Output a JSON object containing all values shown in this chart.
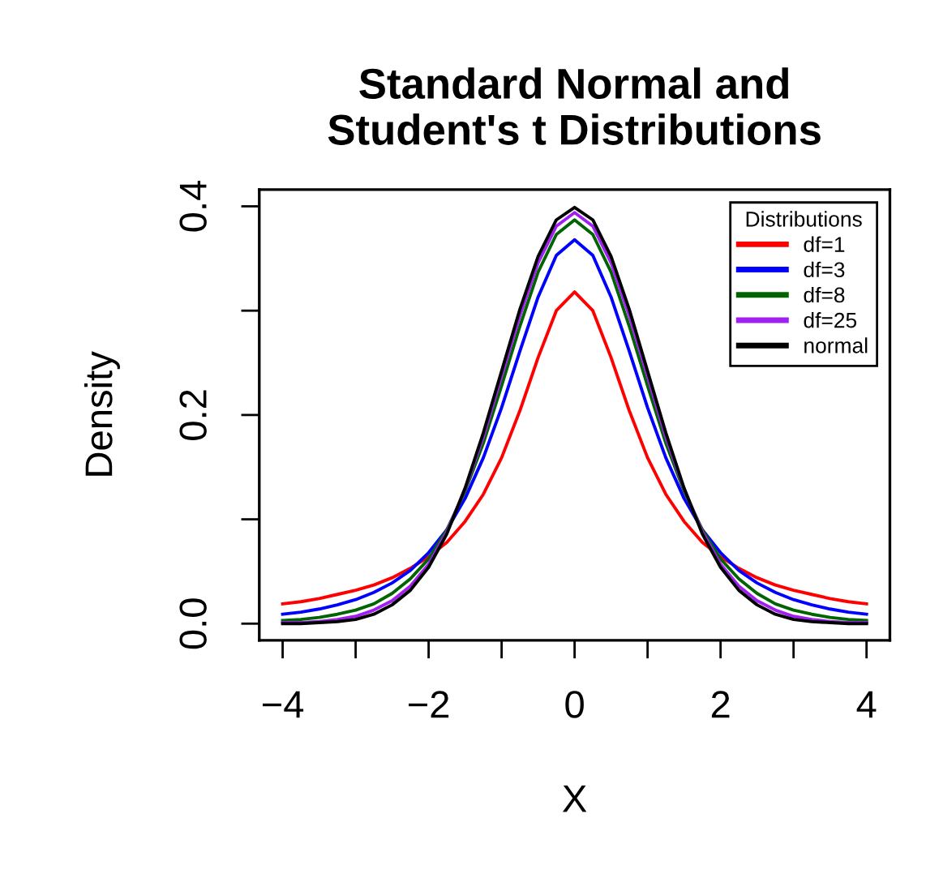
{
  "chart_data": {
    "type": "line",
    "title": "Standard Normal and\nStudent's t Distributions",
    "xlabel": "X",
    "ylabel": "Density",
    "x": [
      -4,
      -3.75,
      -3.5,
      -3.25,
      -3,
      -2.75,
      -2.5,
      -2.25,
      -2,
      -1.75,
      -1.5,
      -1.25,
      -1,
      -0.75,
      -0.5,
      -0.25,
      0,
      0.25,
      0.5,
      0.75,
      1,
      1.25,
      1.5,
      1.75,
      2,
      2.25,
      2.5,
      2.75,
      3,
      3.25,
      3.5,
      3.75,
      4
    ],
    "series": [
      {
        "name": "df=1",
        "color": "#ff0000",
        "values": [
          0.019,
          0.021,
          0.024,
          0.028,
          0.032,
          0.037,
          0.044,
          0.053,
          0.064,
          0.078,
          0.098,
          0.124,
          0.159,
          0.204,
          0.255,
          0.3,
          0.318,
          0.3,
          0.255,
          0.204,
          0.159,
          0.124,
          0.098,
          0.078,
          0.064,
          0.053,
          0.044,
          0.037,
          0.032,
          0.028,
          0.024,
          0.021,
          0.019
        ]
      },
      {
        "name": "df=3",
        "color": "#0000ff",
        "values": [
          0.009,
          0.011,
          0.014,
          0.018,
          0.023,
          0.03,
          0.039,
          0.051,
          0.068,
          0.09,
          0.12,
          0.159,
          0.207,
          0.261,
          0.313,
          0.353,
          0.368,
          0.353,
          0.313,
          0.261,
          0.207,
          0.159,
          0.12,
          0.09,
          0.068,
          0.051,
          0.039,
          0.03,
          0.023,
          0.018,
          0.014,
          0.011,
          0.009
        ]
      },
      {
        "name": "df=8",
        "color": "#006400",
        "values": [
          0.003,
          0.004,
          0.006,
          0.009,
          0.013,
          0.019,
          0.029,
          0.043,
          0.062,
          0.09,
          0.127,
          0.173,
          0.228,
          0.285,
          0.337,
          0.373,
          0.387,
          0.373,
          0.337,
          0.285,
          0.228,
          0.173,
          0.127,
          0.09,
          0.062,
          0.043,
          0.029,
          0.019,
          0.013,
          0.009,
          0.006,
          0.004,
          0.003
        ]
      },
      {
        "name": "df=25",
        "color": "#a020f0",
        "values": [
          0.001,
          0.001,
          0.002,
          0.004,
          0.007,
          0.013,
          0.022,
          0.036,
          0.057,
          0.088,
          0.129,
          0.179,
          0.237,
          0.295,
          0.346,
          0.381,
          0.394,
          0.381,
          0.346,
          0.295,
          0.237,
          0.179,
          0.129,
          0.088,
          0.057,
          0.036,
          0.022,
          0.013,
          0.007,
          0.004,
          0.002,
          0.001,
          0.001
        ]
      },
      {
        "name": "normal",
        "color": "#000000",
        "values": [
          0.0,
          0.0,
          0.001,
          0.002,
          0.004,
          0.009,
          0.018,
          0.032,
          0.054,
          0.086,
          0.13,
          0.183,
          0.242,
          0.301,
          0.352,
          0.387,
          0.399,
          0.387,
          0.352,
          0.301,
          0.242,
          0.183,
          0.13,
          0.086,
          0.054,
          0.032,
          0.018,
          0.009,
          0.004,
          0.002,
          0.001,
          0.0,
          0.0
        ]
      }
    ],
    "xlim": [
      -4.32,
      4.32
    ],
    "ylim": [
      -0.016,
      0.416
    ],
    "xticks": [
      -4,
      {
        "value": -3,
        "label": null
      },
      {
        "value": -2,
        "label": "−2"
      },
      {
        "value": -1,
        "label": null
      },
      0,
      {
        "value": 1,
        "label": null
      },
      2,
      {
        "value": 3,
        "label": null
      },
      4
    ],
    "yticks": [
      {
        "value": 0.0,
        "label": "0.0"
      },
      {
        "value": 0.1,
        "label": null
      },
      0.2,
      {
        "value": 0.3,
        "label": null
      },
      0.4
    ],
    "legend": "top right",
    "legend_title": "Distributions",
    "grid": false,
    "marker": "none",
    "line_style": "solid"
  }
}
